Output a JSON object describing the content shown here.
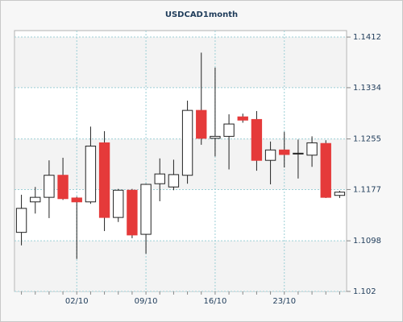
{
  "chart_data": {
    "type": "candlestick",
    "title": "USDCAD1month",
    "categories": [
      null,
      null,
      null,
      null,
      "02/10",
      null,
      null,
      null,
      null,
      "09/10",
      null,
      null,
      null,
      null,
      "16/10",
      null,
      null,
      null,
      null,
      "23/10",
      null,
      null,
      null,
      null
    ],
    "open": [
      1.1111,
      1.1158,
      1.1165,
      1.1199,
      1.1164,
      1.1158,
      1.1249,
      1.1134,
      1.1176,
      1.1108,
      1.1186,
      1.1181,
      1.1199,
      1.1299,
      1.1256,
      1.1259,
      1.1289,
      1.1285,
      1.1222,
      1.1238,
      1.1232,
      1.123,
      1.1248,
      1.1168
    ],
    "high": [
      1.1169,
      1.1181,
      1.1222,
      1.1226,
      1.1166,
      1.1274,
      1.1267,
      1.1178,
      1.1178,
      1.1186,
      1.1225,
      1.1223,
      1.1314,
      1.1388,
      1.1365,
      1.1293,
      1.1294,
      1.1298,
      1.1251,
      1.1266,
      1.1254,
      1.1259,
      1.1253,
      1.1175
    ],
    "low": [
      1.1091,
      1.114,
      1.1133,
      1.1161,
      1.107,
      1.1155,
      1.1113,
      1.1127,
      1.1102,
      1.1078,
      1.1159,
      1.1176,
      1.1186,
      1.1246,
      1.1228,
      1.1208,
      1.128,
      1.1206,
      1.1185,
      1.1211,
      1.1194,
      1.1212,
      1.1164,
      1.1164
    ],
    "close": [
      1.1148,
      1.1165,
      1.1199,
      1.1163,
      1.1158,
      1.1244,
      1.1134,
      1.1176,
      1.1107,
      1.1185,
      1.1201,
      1.12,
      1.1299,
      1.1256,
      1.1259,
      1.1278,
      1.1284,
      1.1222,
      1.1238,
      1.1231,
      1.1233,
      1.1249,
      1.1165,
      1.1173
    ],
    "up_color": "#ffffff",
    "down_color": "#e53a3a",
    "ylim": [
      1.102,
      1.1422
    ],
    "yticks": [
      1.102,
      1.1098,
      1.1177,
      1.1255,
      1.1334,
      1.1412
    ],
    "grid": true
  }
}
